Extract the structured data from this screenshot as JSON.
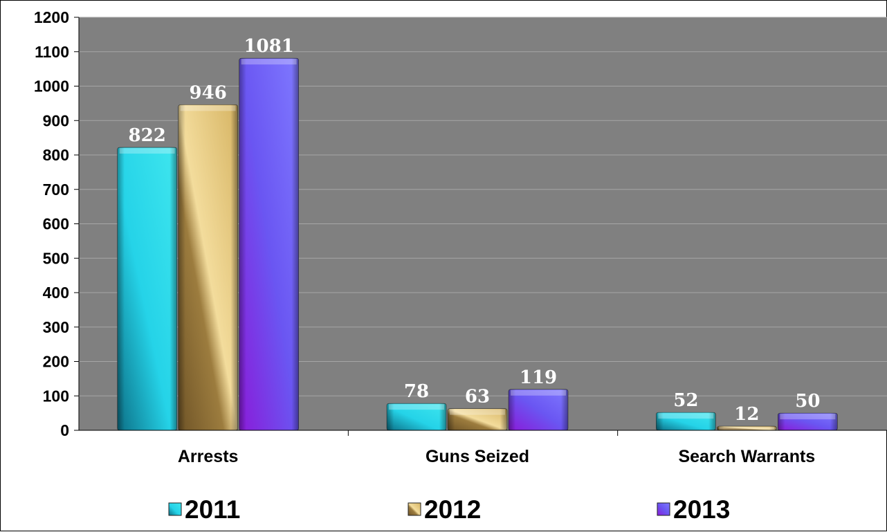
{
  "chart_data": {
    "type": "bar",
    "title": "",
    "xlabel": "",
    "ylabel": "",
    "categories": [
      "Arrests",
      "Guns Seized",
      "Search Warrants"
    ],
    "series": [
      {
        "name": "2011",
        "values": [
          822,
          78,
          52
        ],
        "color": "#1fc6e0"
      },
      {
        "name": "2012",
        "values": [
          946,
          63,
          12
        ],
        "color": "#c9a24e"
      },
      {
        "name": "2013",
        "values": [
          1081,
          119,
          50
        ],
        "color": "#7a4cf5"
      }
    ],
    "ylim": [
      0,
      1200
    ],
    "yticks": [
      0,
      100,
      200,
      300,
      400,
      500,
      600,
      700,
      800,
      900,
      1000,
      1100,
      1200
    ],
    "grid": true,
    "legend": "bottom",
    "plot_background": "#808080"
  }
}
